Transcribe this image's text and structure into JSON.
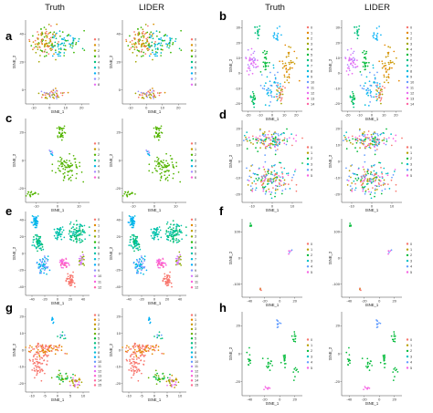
{
  "column_titles": [
    "Truth",
    "LIDER",
    "Truth",
    "LIDER"
  ],
  "chart_data": [
    {
      "panel": "a",
      "type": "scatter",
      "xlabel": "tSNE_1",
      "ylabel": "tSNE_2",
      "xticks": [
        "-10",
        "0",
        "10",
        "20"
      ],
      "yticks": [
        "0",
        "20",
        "40"
      ],
      "xlim": [
        -16,
        22
      ],
      "ylim": [
        -45,
        45
      ],
      "legend": [
        "0",
        "1",
        "2",
        "3",
        "4",
        "5",
        "6",
        "7",
        "8"
      ],
      "colors": [
        "#f8766d",
        "#d89000",
        "#a3a500",
        "#39b600",
        "#00bf7d",
        "#00bfc4",
        "#00b0f6",
        "#9590ff",
        "#e76bf3"
      ],
      "clusters": [
        {
          "cx": -5,
          "cy": 22,
          "sx": 6,
          "sy": 10,
          "n": 120,
          "cats": [
            0,
            1,
            2,
            3
          ]
        },
        {
          "cx": 8,
          "cy": 18,
          "sx": 5,
          "sy": 8,
          "n": 70,
          "cats": [
            3,
            4,
            5,
            6
          ]
        },
        {
          "cx": 0,
          "cy": -35,
          "sx": 6,
          "sy": 3,
          "n": 50,
          "cats": [
            0,
            1,
            2,
            7
          ]
        }
      ]
    },
    {
      "panel": "b",
      "type": "scatter",
      "xlabel": "tSNE_1",
      "ylabel": "tSNE_2",
      "xticks": [
        "-20",
        "-10",
        "0",
        "10",
        "20"
      ],
      "yticks": [
        "-20",
        "-10",
        "0",
        "10",
        "20",
        "30"
      ],
      "xlim": [
        -26,
        28
      ],
      "ylim": [
        -26,
        34
      ],
      "legend": [
        "0",
        "1",
        "2",
        "3",
        "4",
        "5",
        "6",
        "7",
        "8",
        "9",
        "10",
        "11",
        "12",
        "13",
        "14"
      ],
      "colors": [
        "#f8766d",
        "#e58700",
        "#c99800",
        "#a3a500",
        "#6bb100",
        "#00ba38",
        "#00bf7d",
        "#00c0af",
        "#00bcd8",
        "#00b0f6",
        "#619cff",
        "#b983ff",
        "#e76bf3",
        "#fd61d1",
        "#ff67a4"
      ],
      "clusters": [
        {
          "cx": -12,
          "cy": 26,
          "sx": 2,
          "sy": 3,
          "n": 15,
          "cats": [
            6
          ]
        },
        {
          "cx": 5,
          "cy": 24,
          "sx": 2,
          "sy": 3,
          "n": 15,
          "cats": [
            9
          ]
        },
        {
          "cx": -18,
          "cy": 6,
          "sx": 3,
          "sy": 5,
          "n": 40,
          "cats": [
            11,
            12
          ]
        },
        {
          "cx": -5,
          "cy": 8,
          "sx": 2,
          "sy": 4,
          "n": 25,
          "cats": [
            5
          ]
        },
        {
          "cx": 16,
          "cy": 4,
          "sx": 4,
          "sy": 6,
          "n": 45,
          "cats": [
            1,
            2
          ]
        },
        {
          "cx": 0,
          "cy": -10,
          "sx": 5,
          "sy": 6,
          "n": 50,
          "cats": [
            8,
            9,
            10
          ]
        },
        {
          "cx": -16,
          "cy": -18,
          "sx": 2,
          "sy": 3,
          "n": 20,
          "cats": [
            5,
            6
          ]
        },
        {
          "cx": 8,
          "cy": -14,
          "sx": 3,
          "sy": 4,
          "n": 25,
          "cats": [
            0,
            3
          ]
        }
      ]
    },
    {
      "panel": "c",
      "type": "scatter",
      "xlabel": "tSNE_1",
      "ylabel": "tSNE_2",
      "xticks": [
        "-10",
        "0",
        "10"
      ],
      "yticks": [
        "-20",
        "0",
        "20"
      ],
      "xlim": [
        -16,
        18
      ],
      "ylim": [
        -30,
        30
      ],
      "legend": [
        "0",
        "1",
        "2",
        "3",
        "4",
        "5",
        "6"
      ],
      "colors": [
        "#f8766d",
        "#c49a00",
        "#53b400",
        "#00c094",
        "#00b6eb",
        "#a58aff",
        "#fb61d7"
      ],
      "clusters": [
        {
          "cx": 3,
          "cy": 20,
          "sx": 1.2,
          "sy": 4,
          "n": 35,
          "cats": [
            2
          ]
        },
        {
          "cx": 6,
          "cy": -4,
          "sx": 4,
          "sy": 6,
          "n": 80,
          "cats": [
            2
          ]
        },
        {
          "cx": -13,
          "cy": -24,
          "sx": 1.5,
          "sy": 1.5,
          "n": 18,
          "cats": [
            2
          ]
        },
        {
          "cx": -2,
          "cy": 5,
          "sx": 1,
          "sy": 1,
          "n": 8,
          "cats": [
            4,
            5
          ]
        }
      ]
    },
    {
      "panel": "d",
      "type": "scatter",
      "xlabel": "tSNE_1",
      "ylabel": "tSNE_2",
      "xticks": [
        "-10",
        "0",
        "10"
      ],
      "yticks": [
        "-20",
        "-10",
        "0",
        "10",
        "20"
      ],
      "xlim": [
        -16,
        18
      ],
      "ylim": [
        -24,
        26
      ],
      "legend": [
        "0",
        "1",
        "2",
        "3",
        "4",
        "5"
      ],
      "colors": [
        "#f8766d",
        "#b79f00",
        "#00ba38",
        "#00bfc4",
        "#619cff",
        "#f564e3"
      ],
      "clusters": [
        {
          "cx": 0,
          "cy": 14,
          "sx": 8,
          "sy": 4,
          "n": 140,
          "cats": [
            0,
            1,
            2,
            3,
            4,
            5
          ]
        },
        {
          "cx": 0,
          "cy": -10,
          "sx": 9,
          "sy": 6,
          "n": 170,
          "cats": [
            0,
            1,
            2,
            3,
            4,
            5
          ]
        }
      ]
    },
    {
      "panel": "e",
      "type": "scatter",
      "xlabel": "tSNE_1",
      "ylabel": "tSNE_2",
      "xticks": [
        "-40",
        "-20",
        "0",
        "20",
        "40"
      ],
      "yticks": [
        "-40",
        "-20",
        "0",
        "20",
        "40"
      ],
      "xlim": [
        -50,
        50
      ],
      "ylim": [
        -50,
        50
      ],
      "legend": [
        "0",
        "1",
        "2",
        "3",
        "4",
        "5",
        "6",
        "7",
        "8",
        "9",
        "10",
        "11",
        "12"
      ],
      "colors": [
        "#f8766d",
        "#e18a00",
        "#be9c00",
        "#8cab00",
        "#24b700",
        "#00be70",
        "#00c1ab",
        "#00bbda",
        "#00acfc",
        "#8b93ff",
        "#d575fe",
        "#f962dd",
        "#ff65ac"
      ],
      "clusters": [
        {
          "cx": -35,
          "cy": 38,
          "sx": 4,
          "sy": 4,
          "n": 40,
          "cats": [
            8,
            7
          ]
        },
        {
          "cx": 2,
          "cy": 25,
          "sx": 4,
          "sy": 5,
          "n": 40,
          "cats": [
            6
          ]
        },
        {
          "cx": 30,
          "cy": 25,
          "sx": 8,
          "sy": 8,
          "n": 90,
          "cats": [
            6,
            5
          ]
        },
        {
          "cx": -30,
          "cy": 12,
          "sx": 5,
          "sy": 6,
          "n": 60,
          "cats": [
            5,
            6
          ]
        },
        {
          "cx": -22,
          "cy": -14,
          "sx": 5,
          "sy": 6,
          "n": 60,
          "cats": [
            7,
            8,
            9
          ]
        },
        {
          "cx": 10,
          "cy": -12,
          "sx": 4,
          "sy": 4,
          "n": 40,
          "cats": [
            11,
            12
          ]
        },
        {
          "cx": 20,
          "cy": -32,
          "sx": 4,
          "sy": 5,
          "n": 45,
          "cats": [
            0
          ]
        },
        {
          "cx": 38,
          "cy": -8,
          "sx": 3,
          "sy": 4,
          "n": 25,
          "cats": [
            10,
            3
          ]
        }
      ]
    },
    {
      "panel": "f",
      "type": "scatter",
      "xlabel": "tSNE_1",
      "ylabel": "tSNE_2",
      "xticks": [
        "-40",
        "-20",
        "0",
        "20"
      ],
      "yticks": [
        "-100",
        "0",
        "100"
      ],
      "xlim": [
        -48,
        36
      ],
      "ylim": [
        -150,
        150
      ],
      "legend": [
        "0",
        "1",
        "2",
        "3",
        "4",
        "5"
      ],
      "colors": [
        "#f8766d",
        "#b79f00",
        "#00ba38",
        "#00bfc4",
        "#619cff",
        "#f564e3"
      ],
      "clusters": [
        {
          "cx": -36,
          "cy": 125,
          "sx": 2,
          "sy": 5,
          "n": 5,
          "cats": [
            2
          ]
        },
        {
          "cx": 18,
          "cy": 25,
          "sx": 3,
          "sy": 10,
          "n": 6,
          "cats": [
            5,
            4
          ]
        },
        {
          "cx": -22,
          "cy": -120,
          "sx": 1.5,
          "sy": 6,
          "n": 5,
          "cats": [
            0,
            1
          ]
        }
      ]
    },
    {
      "panel": "g",
      "type": "scatter",
      "xlabel": "tSNE_1",
      "ylabel": "tSNE_2",
      "xticks": [
        "-10",
        "-5",
        "0",
        "5",
        "10"
      ],
      "yticks": [
        "-20",
        "-10",
        "0",
        "10",
        "20"
      ],
      "xlim": [
        -12,
        12
      ],
      "ylim": [
        -24,
        24
      ],
      "legend": [
        "0",
        "1",
        "2",
        "3",
        "4",
        "5",
        "6",
        "7",
        "8",
        "9",
        "10",
        "11",
        "12",
        "13",
        "14",
        "15"
      ],
      "colors": [
        "#f8766d",
        "#e58700",
        "#c99800",
        "#a3a500",
        "#6bb100",
        "#00ba38",
        "#00bf7d",
        "#00c0af",
        "#00bcd8",
        "#00b0f6",
        "#619cff",
        "#b983ff",
        "#e76bf3",
        "#fd61d1",
        "#ff67a4",
        "#ff6c91"
      ],
      "clusters": [
        {
          "cx": -2,
          "cy": 18,
          "sx": 0.5,
          "sy": 2,
          "n": 8,
          "cats": [
            9
          ]
        },
        {
          "cx": 2,
          "cy": 8,
          "sx": 1,
          "sy": 1,
          "n": 10,
          "cats": [
            10,
            6
          ]
        },
        {
          "cx": -4,
          "cy": 0,
          "sx": 5,
          "sy": 2,
          "n": 90,
          "cats": [
            0,
            1
          ]
        },
        {
          "cx": -7,
          "cy": -8,
          "sx": 2.5,
          "sy": 4,
          "n": 60,
          "cats": [
            0
          ]
        },
        {
          "cx": 2,
          "cy": -16,
          "sx": 2,
          "sy": 2,
          "n": 30,
          "cats": [
            4,
            5
          ]
        },
        {
          "cx": 7,
          "cy": -18,
          "sx": 1.5,
          "sy": 2,
          "n": 30,
          "cats": [
            3,
            12,
            2
          ]
        }
      ]
    },
    {
      "panel": "h",
      "type": "scatter",
      "xlabel": "tSNE_1",
      "ylabel": "tSNE_2",
      "xticks": [
        "-40",
        "-20",
        "0",
        "20"
      ],
      "yticks": [
        "-20",
        "0",
        "20"
      ],
      "xlim": [
        -48,
        36
      ],
      "ylim": [
        -32,
        32
      ],
      "legend": [
        "0",
        "1",
        "2",
        "3",
        "4",
        "5"
      ],
      "colors": [
        "#f8766d",
        "#b79f00",
        "#00ba38",
        "#00bfc4",
        "#619cff",
        "#f564e3"
      ],
      "clusters": [
        {
          "cx": 2,
          "cy": 24,
          "sx": 2,
          "sy": 3,
          "n": 10,
          "cats": [
            4
          ]
        },
        {
          "cx": 24,
          "cy": 12,
          "sx": 3,
          "sy": 4,
          "n": 12,
          "cats": [
            2
          ]
        },
        {
          "cx": -38,
          "cy": -4,
          "sx": 2,
          "sy": 4,
          "n": 12,
          "cats": [
            2
          ]
        },
        {
          "cx": -12,
          "cy": -8,
          "sx": 4,
          "sy": 4,
          "n": 15,
          "cats": [
            2
          ]
        },
        {
          "cx": 12,
          "cy": -6,
          "sx": 3,
          "sy": 3,
          "n": 14,
          "cats": [
            2
          ]
        },
        {
          "cx": 26,
          "cy": -14,
          "sx": 2,
          "sy": 3,
          "n": 8,
          "cats": [
            2
          ]
        },
        {
          "cx": -14,
          "cy": -26,
          "sx": 3,
          "sy": 1,
          "n": 8,
          "cats": [
            5
          ]
        }
      ]
    }
  ]
}
